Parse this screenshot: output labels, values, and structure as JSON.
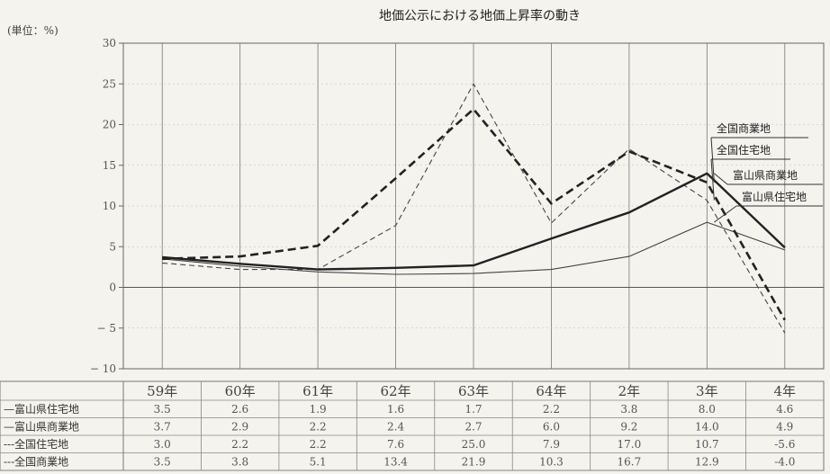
{
  "chart_data": {
    "type": "line",
    "title": "地価公示における地価上昇率の動き",
    "unit_label": "(単位：%)",
    "ylim": [
      -10,
      30
    ],
    "yticks": [
      "30",
      "25",
      "20",
      "15",
      "10",
      "5",
      "0",
      "-5",
      "-10"
    ],
    "categories": [
      "59年",
      "60年",
      "61年",
      "62年",
      "63年",
      "64年",
      "2年",
      "3年",
      "4年"
    ],
    "series": [
      {
        "name": "富山県住宅地",
        "callout": "富山県住宅地",
        "table_label": "—富山県住宅地",
        "values": [
          3.5,
          2.6,
          1.9,
          1.6,
          1.7,
          2.2,
          3.8,
          8.0,
          4.6
        ],
        "cells": [
          "3.5",
          "2.6",
          "1.9",
          "1.6",
          "1.7",
          "2.2",
          "3.8",
          "8.0",
          "4.6"
        ],
        "style": "thin-solid"
      },
      {
        "name": "富山県商業地",
        "callout": "富山県商業地",
        "table_label": "—富山県商業地",
        "values": [
          3.7,
          2.9,
          2.2,
          2.4,
          2.7,
          6.0,
          9.2,
          14.0,
          4.9
        ],
        "cells": [
          "3.7",
          "2.9",
          "2.2",
          "2.4",
          "2.7",
          "6.0",
          "9.2",
          "14.0",
          "4.9"
        ],
        "style": "thick-solid"
      },
      {
        "name": "全国住宅地",
        "callout": "全国住宅地",
        "table_label": "---全国住宅地",
        "values": [
          3.0,
          2.2,
          2.2,
          7.6,
          25.0,
          7.9,
          17.0,
          10.7,
          -5.6
        ],
        "cells": [
          "3.0",
          "2.2",
          "2.2",
          "7.6",
          "25.0",
          "7.9",
          "17.0",
          "10.7",
          "-5.6"
        ],
        "style": "thin-dashed"
      },
      {
        "name": "全国商業地",
        "callout": "全国商業地",
        "table_label": "---全国商業地",
        "values": [
          3.5,
          3.8,
          5.1,
          13.4,
          21.9,
          10.3,
          16.7,
          12.9,
          -4.0
        ],
        "cells": [
          "3.5",
          "3.8",
          "5.1",
          "13.4",
          "21.9",
          "10.3",
          "16.7",
          "12.9",
          "-4.0"
        ],
        "style": "thick-dashed"
      }
    ],
    "grid": true
  }
}
